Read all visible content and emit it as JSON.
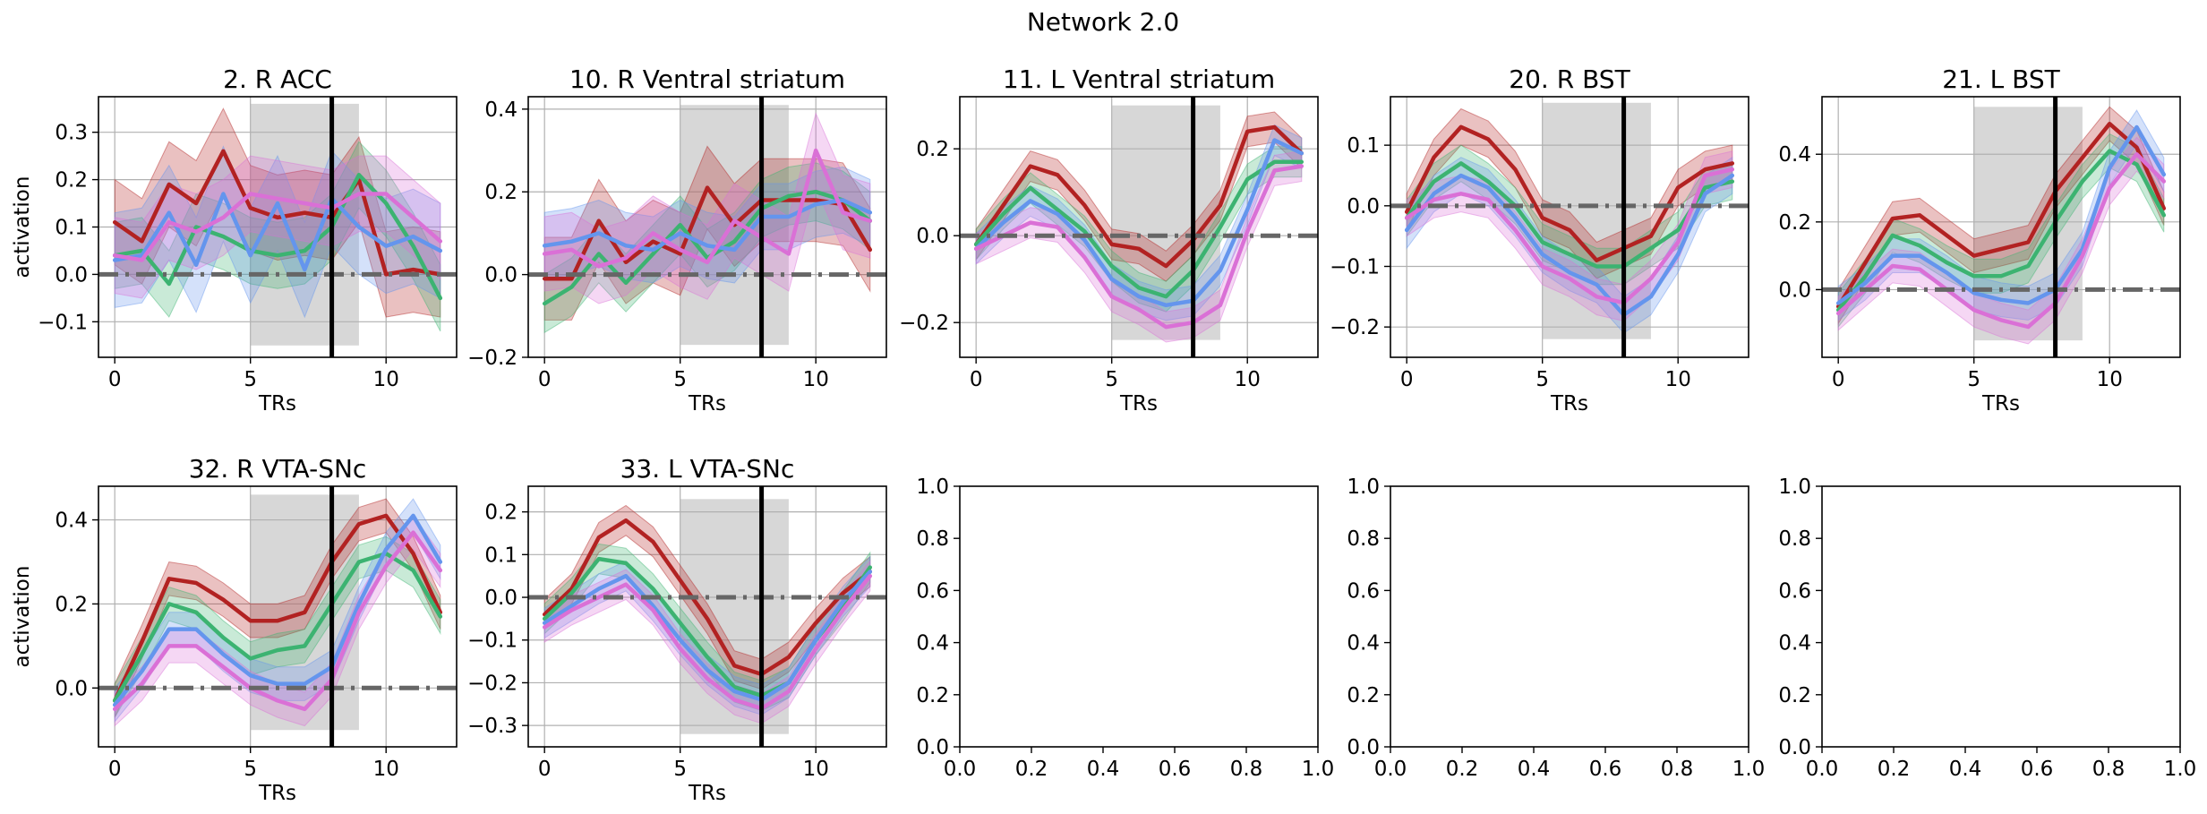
{
  "figure": {
    "suptitle": "Network 2.0",
    "colors": {
      "red": "#b22222",
      "green": "#3cb371",
      "blue": "#6495ed",
      "magenta": "#da70d6",
      "shade": "#bdbdbd",
      "baseline": "#666666",
      "event_line": "#000000",
      "grid": "#b0b0b0"
    }
  },
  "chart_data": [
    {
      "type": "line",
      "title": "2. R ACC",
      "xlabel": "TRs",
      "ylabel": "activation",
      "xlim": [
        -0.6,
        12.6
      ],
      "ylim": [
        -0.175,
        0.375
      ],
      "xticks": [
        0,
        5,
        10
      ],
      "yticks": [
        -0.1,
        0.0,
        0.1,
        0.2,
        0.3
      ],
      "ytick_labels": [
        "−0.1",
        "0.0",
        "0.1",
        "0.2",
        "0.3"
      ],
      "shaded_region": {
        "x": [
          5,
          9
        ],
        "y": [
          -0.15,
          0.36
        ]
      },
      "event_line_x": 8,
      "baseline_y": 0,
      "grid": true,
      "x": [
        0,
        1,
        2,
        3,
        4,
        5,
        6,
        7,
        8,
        9,
        10,
        11,
        12
      ],
      "series": [
        {
          "color": "red",
          "values": [
            0.11,
            0.07,
            0.19,
            0.15,
            0.26,
            0.14,
            0.12,
            0.13,
            0.12,
            0.2,
            0.0,
            0.01,
            0.0
          ],
          "band": 0.09
        },
        {
          "color": "green",
          "values": [
            0.04,
            0.05,
            -0.02,
            0.1,
            0.08,
            0.05,
            0.04,
            0.05,
            0.1,
            0.21,
            0.15,
            0.06,
            -0.05
          ],
          "band": 0.07
        },
        {
          "color": "blue",
          "values": [
            0.03,
            0.04,
            0.13,
            0.02,
            0.17,
            0.04,
            0.15,
            0.01,
            0.16,
            0.1,
            0.06,
            0.08,
            0.05
          ],
          "band": 0.1
        },
        {
          "color": "magenta",
          "values": [
            0.04,
            0.03,
            0.11,
            0.09,
            0.12,
            0.17,
            0.16,
            0.15,
            0.14,
            0.17,
            0.17,
            0.12,
            0.07
          ],
          "band": 0.08
        }
      ]
    },
    {
      "type": "line",
      "title": "10. R Ventral striatum",
      "xlabel": "TRs",
      "ylabel": "",
      "xlim": [
        -0.6,
        12.6
      ],
      "ylim": [
        -0.2,
        0.43
      ],
      "xticks": [
        0,
        5,
        10
      ],
      "yticks": [
        -0.2,
        0.0,
        0.2,
        0.4
      ],
      "ytick_labels": [
        "−0.2",
        "0.0",
        "0.2",
        "0.4"
      ],
      "shaded_region": {
        "x": [
          5,
          9
        ],
        "y": [
          -0.17,
          0.41
        ]
      },
      "event_line_x": 8,
      "baseline_y": 0,
      "grid": true,
      "x": [
        0,
        1,
        2,
        3,
        4,
        5,
        6,
        7,
        8,
        9,
        10,
        11,
        12
      ],
      "series": [
        {
          "color": "red",
          "values": [
            -0.01,
            -0.01,
            0.13,
            0.03,
            0.08,
            0.05,
            0.21,
            0.12,
            0.18,
            0.18,
            0.18,
            0.17,
            0.06
          ],
          "band": 0.1
        },
        {
          "color": "green",
          "values": [
            -0.07,
            -0.03,
            0.05,
            -0.02,
            0.05,
            0.12,
            0.04,
            0.08,
            0.16,
            0.19,
            0.2,
            0.18,
            0.13
          ],
          "band": 0.07
        },
        {
          "color": "blue",
          "values": [
            0.07,
            0.08,
            0.1,
            0.07,
            0.06,
            0.1,
            0.07,
            0.06,
            0.14,
            0.14,
            0.17,
            0.18,
            0.15
          ],
          "band": 0.08
        },
        {
          "color": "magenta",
          "values": [
            0.05,
            0.06,
            0.02,
            0.04,
            0.1,
            0.06,
            0.03,
            0.13,
            0.09,
            0.05,
            0.3,
            0.15,
            0.13
          ],
          "band": 0.09
        }
      ]
    },
    {
      "type": "line",
      "title": "11. L Ventral striatum",
      "xlabel": "TRs",
      "ylabel": "",
      "xlim": [
        -0.6,
        12.6
      ],
      "ylim": [
        -0.28,
        0.32
      ],
      "xticks": [
        0,
        5,
        10
      ],
      "yticks": [
        -0.2,
        0.0,
        0.2
      ],
      "ytick_labels": [
        "−0.2",
        "0.0",
        "0.2"
      ],
      "shaded_region": {
        "x": [
          5,
          9
        ],
        "y": [
          -0.24,
          0.3
        ]
      },
      "event_line_x": 8,
      "baseline_y": 0,
      "grid": true,
      "x": [
        0,
        1,
        2,
        3,
        4,
        5,
        6,
        7,
        8,
        9,
        10,
        11,
        12
      ],
      "series": [
        {
          "color": "red",
          "values": [
            -0.02,
            0.07,
            0.16,
            0.14,
            0.07,
            -0.02,
            -0.03,
            -0.07,
            -0.01,
            0.07,
            0.24,
            0.25,
            0.19
          ],
          "band": 0.035
        },
        {
          "color": "green",
          "values": [
            -0.02,
            0.05,
            0.11,
            0.06,
            0.01,
            -0.07,
            -0.12,
            -0.14,
            -0.08,
            0.02,
            0.13,
            0.17,
            0.17
          ],
          "band": 0.035
        },
        {
          "color": "blue",
          "values": [
            -0.03,
            0.03,
            0.08,
            0.05,
            -0.01,
            -0.1,
            -0.14,
            -0.16,
            -0.15,
            -0.08,
            0.06,
            0.22,
            0.19
          ],
          "band": 0.035
        },
        {
          "color": "magenta",
          "values": [
            -0.03,
            0.0,
            0.03,
            0.02,
            -0.05,
            -0.14,
            -0.17,
            -0.21,
            -0.2,
            -0.16,
            0.01,
            0.15,
            0.16
          ],
          "band": 0.035
        }
      ]
    },
    {
      "type": "line",
      "title": "20. R BST",
      "xlabel": "TRs",
      "ylabel": "",
      "xlim": [
        -0.6,
        12.6
      ],
      "ylim": [
        -0.25,
        0.18
      ],
      "xticks": [
        0,
        5,
        10
      ],
      "yticks": [
        -0.2,
        -0.1,
        0.0,
        0.1
      ],
      "ytick_labels": [
        "−0.2",
        "−0.1",
        "0.0",
        "0.1"
      ],
      "shaded_region": {
        "x": [
          5,
          9
        ],
        "y": [
          -0.22,
          0.17
        ]
      },
      "event_line_x": 8,
      "baseline_y": 0,
      "grid": true,
      "x": [
        0,
        1,
        2,
        3,
        4,
        5,
        6,
        7,
        8,
        9,
        10,
        11,
        12
      ],
      "series": [
        {
          "color": "red",
          "values": [
            -0.01,
            0.08,
            0.13,
            0.11,
            0.06,
            -0.02,
            -0.04,
            -0.09,
            -0.07,
            -0.05,
            0.03,
            0.06,
            0.07
          ],
          "band": 0.03
        },
        {
          "color": "green",
          "values": [
            -0.02,
            0.04,
            0.07,
            0.04,
            0.0,
            -0.06,
            -0.08,
            -0.1,
            -0.1,
            -0.07,
            -0.04,
            0.03,
            0.04
          ],
          "band": 0.03
        },
        {
          "color": "blue",
          "values": [
            -0.04,
            0.02,
            0.05,
            0.03,
            -0.02,
            -0.08,
            -0.11,
            -0.13,
            -0.18,
            -0.15,
            -0.08,
            0.02,
            0.05
          ],
          "band": 0.03
        },
        {
          "color": "magenta",
          "values": [
            -0.02,
            0.01,
            0.02,
            0.01,
            -0.04,
            -0.1,
            -0.12,
            -0.15,
            -0.16,
            -0.12,
            -0.06,
            0.05,
            0.06
          ],
          "band": 0.03
        }
      ]
    },
    {
      "type": "line",
      "title": "21. L BST",
      "xlabel": "TRs",
      "ylabel": "",
      "xlim": [
        -0.6,
        12.6
      ],
      "ylim": [
        -0.2,
        0.57
      ],
      "xticks": [
        0,
        5,
        10
      ],
      "yticks": [
        0.0,
        0.2,
        0.4
      ],
      "ytick_labels": [
        "0.0",
        "0.2",
        "0.4"
      ],
      "shaded_region": {
        "x": [
          5,
          9
        ],
        "y": [
          -0.15,
          0.54
        ]
      },
      "event_line_x": 8,
      "baseline_y": 0,
      "grid": true,
      "x": [
        0,
        1,
        2,
        3,
        4,
        5,
        6,
        7,
        8,
        9,
        10,
        11,
        12
      ],
      "series": [
        {
          "color": "red",
          "values": [
            -0.05,
            0.08,
            0.21,
            0.22,
            0.16,
            0.1,
            0.12,
            0.14,
            0.29,
            0.39,
            0.49,
            0.42,
            0.24
          ],
          "band": 0.05
        },
        {
          "color": "green",
          "values": [
            -0.06,
            0.04,
            0.16,
            0.13,
            0.08,
            0.04,
            0.04,
            0.07,
            0.2,
            0.32,
            0.41,
            0.37,
            0.22
          ],
          "band": 0.05
        },
        {
          "color": "blue",
          "values": [
            -0.04,
            0.02,
            0.1,
            0.1,
            0.05,
            -0.01,
            -0.03,
            -0.04,
            0.0,
            0.12,
            0.36,
            0.48,
            0.34
          ],
          "band": 0.05
        },
        {
          "color": "magenta",
          "values": [
            -0.07,
            0.0,
            0.07,
            0.06,
            0.0,
            -0.06,
            -0.09,
            -0.11,
            -0.04,
            0.1,
            0.3,
            0.4,
            0.32
          ],
          "band": 0.05
        }
      ]
    },
    {
      "type": "line",
      "title": "32. R VTA-SNc",
      "xlabel": "TRs",
      "ylabel": "activation",
      "xlim": [
        -0.6,
        12.6
      ],
      "ylim": [
        -0.14,
        0.48
      ],
      "xticks": [
        0,
        5,
        10
      ],
      "yticks": [
        0.0,
        0.2,
        0.4
      ],
      "ytick_labels": [
        "0.0",
        "0.2",
        "0.4"
      ],
      "shaded_region": {
        "x": [
          5,
          9
        ],
        "y": [
          -0.1,
          0.46
        ]
      },
      "event_line_x": 8,
      "baseline_y": 0,
      "grid": true,
      "x": [
        0,
        1,
        2,
        3,
        4,
        5,
        6,
        7,
        8,
        9,
        10,
        11,
        12
      ],
      "series": [
        {
          "color": "red",
          "values": [
            -0.03,
            0.11,
            0.26,
            0.25,
            0.21,
            0.16,
            0.16,
            0.18,
            0.3,
            0.39,
            0.41,
            0.32,
            0.18
          ],
          "band": 0.04
        },
        {
          "color": "green",
          "values": [
            -0.03,
            0.08,
            0.2,
            0.18,
            0.12,
            0.07,
            0.09,
            0.1,
            0.2,
            0.3,
            0.32,
            0.28,
            0.17
          ],
          "band": 0.04
        },
        {
          "color": "blue",
          "values": [
            -0.04,
            0.04,
            0.14,
            0.14,
            0.08,
            0.03,
            0.01,
            0.01,
            0.05,
            0.2,
            0.33,
            0.41,
            0.3
          ],
          "band": 0.04
        },
        {
          "color": "magenta",
          "values": [
            -0.05,
            0.01,
            0.1,
            0.1,
            0.05,
            0.0,
            -0.03,
            -0.05,
            0.02,
            0.18,
            0.29,
            0.37,
            0.28
          ],
          "band": 0.04
        }
      ]
    },
    {
      "type": "line",
      "title": "33. L VTA-SNc",
      "xlabel": "TRs",
      "ylabel": "",
      "xlim": [
        -0.6,
        12.6
      ],
      "ylim": [
        -0.35,
        0.26
      ],
      "xticks": [
        0,
        5,
        10
      ],
      "yticks": [
        -0.3,
        -0.2,
        -0.1,
        0.0,
        0.1,
        0.2
      ],
      "ytick_labels": [
        "−0.3",
        "−0.2",
        "−0.1",
        "0.0",
        "0.1",
        "0.2"
      ],
      "shaded_region": {
        "x": [
          5,
          9
        ],
        "y": [
          -0.32,
          0.23
        ]
      },
      "event_line_x": 8,
      "baseline_y": 0,
      "grid": true,
      "x": [
        0,
        1,
        2,
        3,
        4,
        5,
        6,
        7,
        8,
        9,
        10,
        11,
        12
      ],
      "series": [
        {
          "color": "red",
          "values": [
            -0.04,
            0.02,
            0.14,
            0.18,
            0.13,
            0.04,
            -0.05,
            -0.16,
            -0.18,
            -0.14,
            -0.06,
            0.01,
            0.06
          ],
          "band": 0.035
        },
        {
          "color": "green",
          "values": [
            -0.05,
            0.01,
            0.09,
            0.08,
            0.02,
            -0.06,
            -0.14,
            -0.21,
            -0.23,
            -0.2,
            -0.1,
            -0.02,
            0.07
          ],
          "band": 0.035
        },
        {
          "color": "blue",
          "values": [
            -0.06,
            -0.02,
            0.02,
            0.05,
            -0.02,
            -0.1,
            -0.17,
            -0.22,
            -0.24,
            -0.2,
            -0.1,
            -0.01,
            0.06
          ],
          "band": 0.035
        },
        {
          "color": "magenta",
          "values": [
            -0.07,
            -0.03,
            0.0,
            0.03,
            -0.03,
            -0.12,
            -0.19,
            -0.24,
            -0.26,
            -0.22,
            -0.12,
            -0.03,
            0.05
          ],
          "band": 0.035
        }
      ]
    },
    {
      "type": "line",
      "title": "",
      "xlabel": "",
      "ylabel": "",
      "xlim": [
        0,
        1
      ],
      "ylim": [
        0,
        1
      ],
      "xticks": [
        0.0,
        0.2,
        0.4,
        0.6,
        0.8,
        1.0
      ],
      "yticks": [
        0.0,
        0.2,
        0.4,
        0.6,
        0.8,
        1.0
      ],
      "xtick_labels": [
        "0.0",
        "0.2",
        "0.4",
        "0.6",
        "0.8",
        "1.0"
      ],
      "ytick_labels": [
        "0.0",
        "0.2",
        "0.4",
        "0.6",
        "0.8",
        "1.0"
      ],
      "grid": false,
      "empty": true,
      "series": []
    },
    {
      "type": "line",
      "title": "",
      "xlabel": "",
      "ylabel": "",
      "xlim": [
        0,
        1
      ],
      "ylim": [
        0,
        1
      ],
      "xticks": [
        0.0,
        0.2,
        0.4,
        0.6,
        0.8,
        1.0
      ],
      "yticks": [
        0.0,
        0.2,
        0.4,
        0.6,
        0.8,
        1.0
      ],
      "xtick_labels": [
        "0.0",
        "0.2",
        "0.4",
        "0.6",
        "0.8",
        "1.0"
      ],
      "ytick_labels": [
        "0.0",
        "0.2",
        "0.4",
        "0.6",
        "0.8",
        "1.0"
      ],
      "grid": false,
      "empty": true,
      "series": []
    },
    {
      "type": "line",
      "title": "",
      "xlabel": "",
      "ylabel": "",
      "xlim": [
        0,
        1
      ],
      "ylim": [
        0,
        1
      ],
      "xticks": [
        0.0,
        0.2,
        0.4,
        0.6,
        0.8,
        1.0
      ],
      "yticks": [
        0.0,
        0.2,
        0.4,
        0.6,
        0.8,
        1.0
      ],
      "xtick_labels": [
        "0.0",
        "0.2",
        "0.4",
        "0.6",
        "0.8",
        "1.0"
      ],
      "ytick_labels": [
        "0.0",
        "0.2",
        "0.4",
        "0.6",
        "0.8",
        "1.0"
      ],
      "grid": false,
      "empty": true,
      "series": []
    }
  ]
}
